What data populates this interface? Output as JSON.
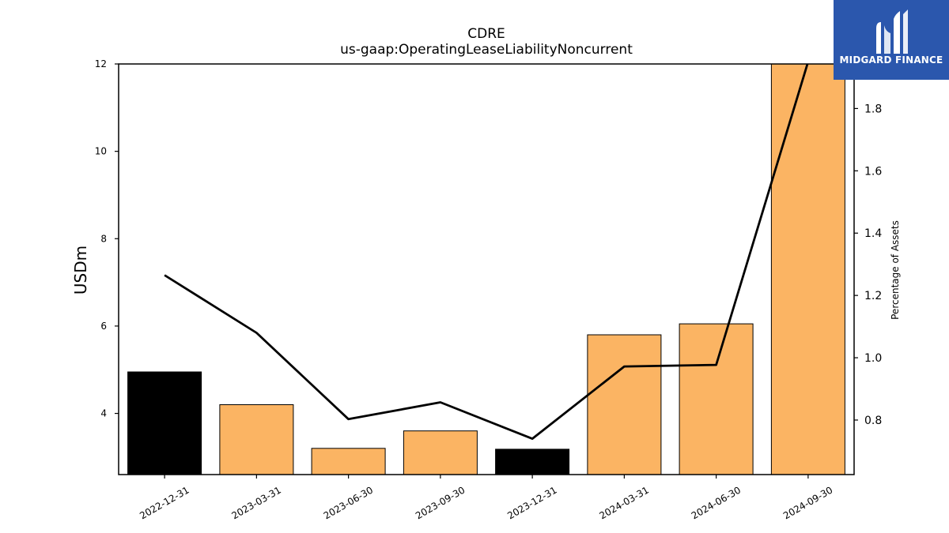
{
  "chart_data": {
    "type": "bar",
    "title": "CDRE",
    "subtitle": "us-gaap:OperatingLeaseLiabilityNoncurrent",
    "ylabel": "USDm",
    "y2label": "Percentage of Assets",
    "categories": [
      "2022-12-31",
      "2023-03-31",
      "2023-06-30",
      "2023-09-30",
      "2023-12-31",
      "2024-03-31",
      "2024-06-30",
      "2024-09-30"
    ],
    "bar_values": [
      4.95,
      4.2,
      3.2,
      3.6,
      3.18,
      5.8,
      6.05,
      12.4
    ],
    "bar_colors": [
      "#000000",
      "#fbb463",
      "#fbb463",
      "#fbb463",
      "#000000",
      "#fbb463",
      "#fbb463",
      "#fbb463"
    ],
    "line_values": [
      1.265,
      1.08,
      0.803,
      0.857,
      0.74,
      0.972,
      0.977,
      1.95
    ],
    "line_color": "#000000",
    "ylim": [
      2.6,
      12
    ],
    "y2lim": [
      0.625,
      1.943
    ],
    "yticks": [
      4,
      6,
      8,
      10,
      12
    ],
    "y2ticks": [
      0.8,
      1.0,
      1.2,
      1.4,
      1.6,
      1.8
    ],
    "grid": false
  },
  "logo": {
    "text": "MIDGARD FINANCE"
  }
}
